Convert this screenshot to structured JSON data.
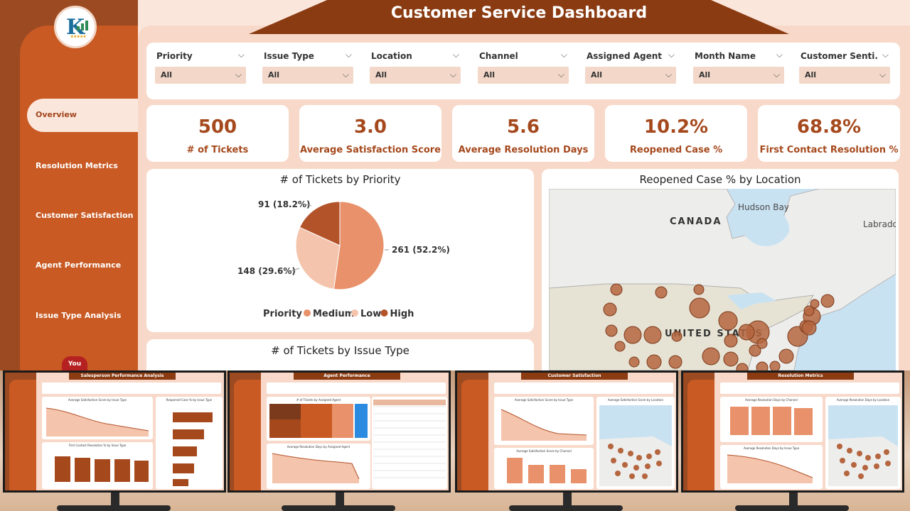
{
  "dashboard": {
    "title": "Customer Service Dashboard",
    "nav": {
      "active": "Overview",
      "items": [
        "Resolution Metrics",
        "Customer Satisfaction",
        "Agent Performance",
        "Issue Type Analysis"
      ]
    },
    "social": {
      "youtube_label": "You"
    },
    "filters": [
      {
        "label": "Priority",
        "value": "All"
      },
      {
        "label": "Issue Type",
        "value": "All"
      },
      {
        "label": "Location",
        "value": "All"
      },
      {
        "label": "Channel",
        "value": "All"
      },
      {
        "label": "Assigned Agent",
        "value": "All"
      },
      {
        "label": "Month Name",
        "value": "All"
      },
      {
        "label": "Customer Senti...",
        "value": "All"
      }
    ],
    "kpis": [
      {
        "value": "500",
        "label": "# of Tickets"
      },
      {
        "value": "3.0",
        "label": "Average Satisfaction Score"
      },
      {
        "value": "5.6",
        "label": "Average Resolution Days"
      },
      {
        "value": "10.2%",
        "label": "Reopened Case %"
      },
      {
        "value": "68.8%",
        "label": "First Contact Resolution %"
      }
    ],
    "priority_chart": {
      "title": "# of Tickets by Priority",
      "legend_title": "Priority",
      "labels": [
        "261 (52.2%)",
        "148 (29.6%)",
        "91 (18.2%)"
      ]
    },
    "map_chart": {
      "title": "Reopened Case % by Location",
      "places": {
        "canada": "CANADA",
        "us": "UNITED STATES",
        "hudson": "Hudson Bay",
        "labrador": "Labrado"
      }
    },
    "issue_chart": {
      "title": "# of Tickets by Issue Type"
    }
  },
  "monitors": [
    {
      "title": "Salesperson Performance Analysis",
      "panels": [
        "Average Satisfaction Score by Issue Type",
        "Reopened Case % by Issue Type",
        "First Contact Resolution % by Issue Type"
      ]
    },
    {
      "title": "Agent Performance",
      "panels": [
        "# of Tickets by Assigned Agent",
        "Average Resolution Days by Assigned Agent"
      ]
    },
    {
      "title": "Customer Satisfaction",
      "panels": [
        "Average Satisfaction Score by Issue Type",
        "Average Satisfaction Score by Location",
        "Average Satisfaction Score by Channel"
      ]
    },
    {
      "title": "Resolution Metrics",
      "panels": [
        "Average Resolution Days by Channel",
        "Average Resolution Days by Location",
        "Average Resolution Days by Issue Type"
      ]
    }
  ],
  "chart_data": {
    "type": "pie",
    "title": "# of Tickets by Priority",
    "legend": [
      "Medium",
      "Low",
      "High"
    ],
    "values": [
      261,
      148,
      91
    ],
    "percent": [
      52.2,
      29.6,
      18.2
    ],
    "colors": [
      "#e8916a",
      "#f4c4ac",
      "#b3532a"
    ],
    "legend_position": "bottom"
  }
}
